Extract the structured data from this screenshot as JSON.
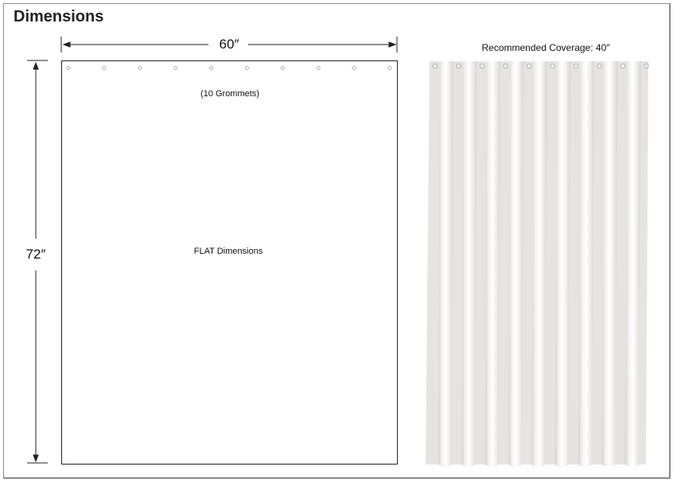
{
  "title": "Dimensions",
  "flat": {
    "width_label": "60″",
    "height_label": "72″",
    "grommets_label": "(10 Grommets)",
    "center_label": "FLAT Dimensions",
    "grommet_count": 10
  },
  "hung": {
    "coverage_label": "Recommended Coverage: 40″",
    "grommet_count": 10,
    "curtain_color": "#e6e4e1"
  }
}
